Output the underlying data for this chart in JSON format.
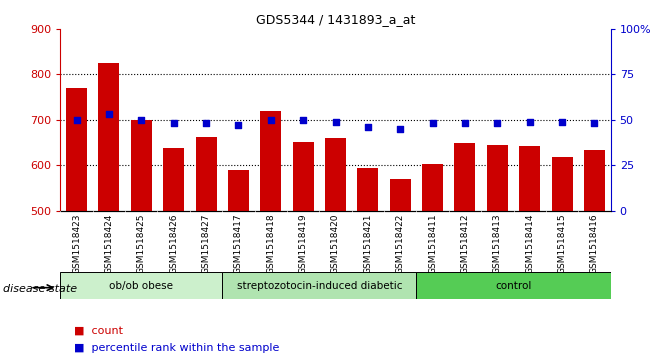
{
  "title": "GDS5344 / 1431893_a_at",
  "samples": [
    "GSM1518423",
    "GSM1518424",
    "GSM1518425",
    "GSM1518426",
    "GSM1518427",
    "GSM1518417",
    "GSM1518418",
    "GSM1518419",
    "GSM1518420",
    "GSM1518421",
    "GSM1518422",
    "GSM1518411",
    "GSM1518412",
    "GSM1518413",
    "GSM1518414",
    "GSM1518415",
    "GSM1518416"
  ],
  "counts": [
    770,
    825,
    700,
    638,
    663,
    590,
    720,
    650,
    660,
    593,
    570,
    602,
    648,
    645,
    643,
    618,
    633
  ],
  "percentiles": [
    50,
    53,
    50,
    48,
    48,
    47,
    50,
    50,
    49,
    46,
    45,
    48,
    48,
    48,
    49,
    49,
    48
  ],
  "groups": [
    {
      "label": "ob/ob obese",
      "start": 0,
      "end": 5,
      "color": "#ccf0cc"
    },
    {
      "label": "streptozotocin-induced diabetic",
      "start": 5,
      "end": 11,
      "color": "#b0e4b0"
    },
    {
      "label": "control",
      "start": 11,
      "end": 17,
      "color": "#55cc55"
    }
  ],
  "bar_color": "#cc0000",
  "dot_color": "#0000cc",
  "ylim_left": [
    500,
    900
  ],
  "ylim_right": [
    0,
    100
  ],
  "yticks_left": [
    500,
    600,
    700,
    800,
    900
  ],
  "yticks_right": [
    0,
    25,
    50,
    75,
    100
  ],
  "grid_values": [
    600,
    700,
    800
  ],
  "plot_bg_color": "#ffffff",
  "tick_area_color": "#d0d0d0",
  "label_count": "count",
  "label_percentile": "percentile rank within the sample",
  "disease_state_label": "disease state"
}
